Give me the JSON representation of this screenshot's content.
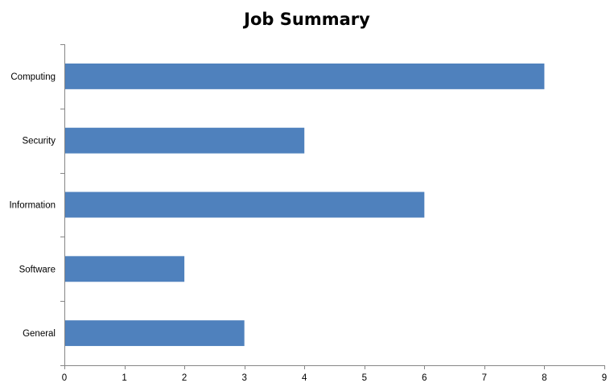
{
  "chart_data": {
    "type": "bar",
    "orientation": "horizontal",
    "title": "Job Summary",
    "xlabel": "",
    "ylabel": "",
    "categories": [
      "Computing",
      "Security",
      "Information",
      "Software",
      "General"
    ],
    "values": [
      8,
      4,
      6,
      2,
      3
    ],
    "xlim": [
      0,
      9
    ],
    "x_ticks": [
      "0",
      "1",
      "2",
      "3",
      "4",
      "5",
      "6",
      "7",
      "8",
      "9"
    ],
    "grid": false,
    "legend": "none",
    "bar_color": "#4f81bd"
  }
}
